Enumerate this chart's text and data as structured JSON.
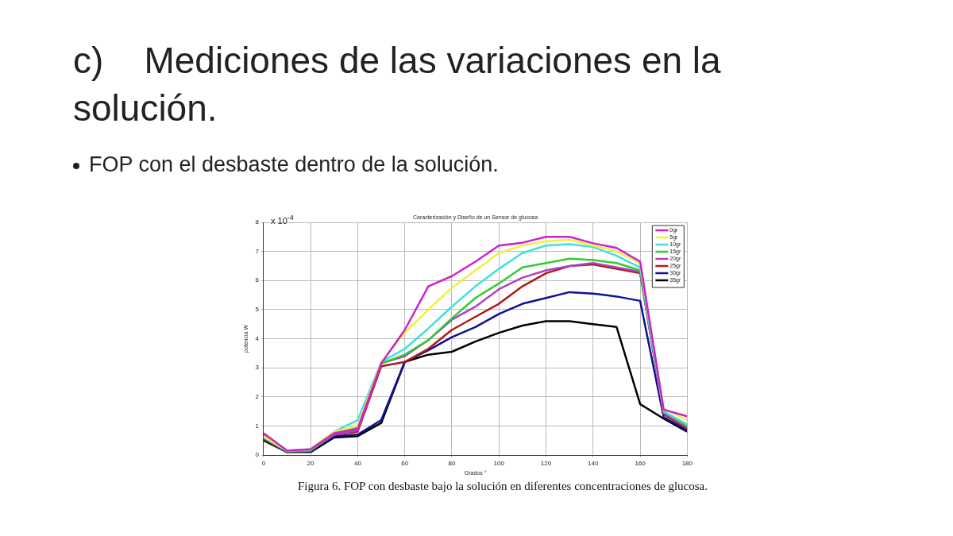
{
  "chart_data": {
    "type": "line",
    "title": "c)    Mediciones de las variaciones en la solución.",
    "subtitle": "FOP con el desbaste dentro de la solución.",
    "xlabel": "Grados °",
    "ylabel": "potencia W",
    "annotations": [
      "Caracterización y Diseño de un Sensor de glucosa",
      "x 10$^{-4}$",
      "Figura 6. FOP con desbaste bajo la solución en diferentes concentraciones de glucosa."
    ],
    "x": [
      0,
      10,
      20,
      30,
      40,
      50,
      60,
      70,
      80,
      90,
      100,
      110,
      120,
      130,
      140,
      150,
      160,
      170,
      180
    ],
    "xlim": [
      0,
      180
    ],
    "xticks": [
      0,
      20,
      40,
      60,
      80,
      100,
      120,
      140,
      160,
      180
    ],
    "ylim": [
      0,
      8
    ],
    "yticks": [
      0,
      1,
      2,
      3,
      4,
      5,
      6,
      7,
      8
    ],
    "grid": true,
    "legend": "top right",
    "marker": "none",
    "line_style": "solid",
    "series": [
      {
        "name": "0gr",
        "color": "#cc22cc",
        "values": [
          0.75,
          0.15,
          0.2,
          0.75,
          0.9,
          3.15,
          4.3,
          5.8,
          6.15,
          6.65,
          7.2,
          7.3,
          7.5,
          7.5,
          7.28,
          7.12,
          6.65,
          1.56,
          1.33
        ]
      },
      {
        "name": "5gr",
        "color": "#f0f040",
        "values": [
          0.65,
          0.15,
          0.2,
          0.8,
          1.0,
          3.2,
          4.2,
          5.0,
          5.75,
          6.35,
          6.95,
          7.2,
          7.35,
          7.4,
          7.2,
          7.0,
          6.6,
          1.6,
          1.2
        ]
      },
      {
        "name": "10gr",
        "color": "#40e0e0",
        "values": [
          0.6,
          0.15,
          0.2,
          0.8,
          1.2,
          3.2,
          3.65,
          4.35,
          5.1,
          5.8,
          6.4,
          6.95,
          7.2,
          7.25,
          7.15,
          6.85,
          6.45,
          1.5,
          1.05
        ]
      },
      {
        "name": "15gr",
        "color": "#30cc30",
        "values": [
          0.6,
          0.12,
          0.15,
          0.75,
          0.95,
          3.15,
          3.45,
          3.95,
          4.7,
          5.4,
          5.9,
          6.45,
          6.6,
          6.75,
          6.7,
          6.6,
          6.35,
          1.5,
          1.0
        ]
      },
      {
        "name": "20gr",
        "color": "#b040c0",
        "values": [
          0.7,
          0.15,
          0.18,
          0.7,
          0.85,
          3.15,
          3.4,
          3.95,
          4.65,
          5.1,
          5.7,
          6.1,
          6.35,
          6.5,
          6.6,
          6.45,
          6.3,
          1.45,
          0.95
        ]
      },
      {
        "name": "25gr",
        "color": "#b01818",
        "values": [
          0.55,
          0.12,
          0.15,
          0.7,
          0.8,
          3.05,
          3.2,
          3.65,
          4.3,
          4.75,
          5.2,
          5.8,
          6.25,
          6.5,
          6.55,
          6.4,
          6.25,
          1.4,
          0.9
        ]
      },
      {
        "name": "30gr",
        "color": "#101090",
        "values": [
          0.55,
          0.1,
          0.12,
          0.65,
          0.7,
          1.2,
          3.2,
          3.6,
          4.05,
          4.4,
          4.85,
          5.2,
          5.4,
          5.6,
          5.55,
          5.45,
          5.3,
          1.3,
          0.85
        ]
      },
      {
        "name": "35gr",
        "color": "#000000",
        "values": [
          0.5,
          0.1,
          0.1,
          0.6,
          0.65,
          1.1,
          3.2,
          3.45,
          3.55,
          3.9,
          4.2,
          4.45,
          4.6,
          4.6,
          4.5,
          4.4,
          1.75,
          1.25,
          0.8
        ]
      }
    ]
  }
}
